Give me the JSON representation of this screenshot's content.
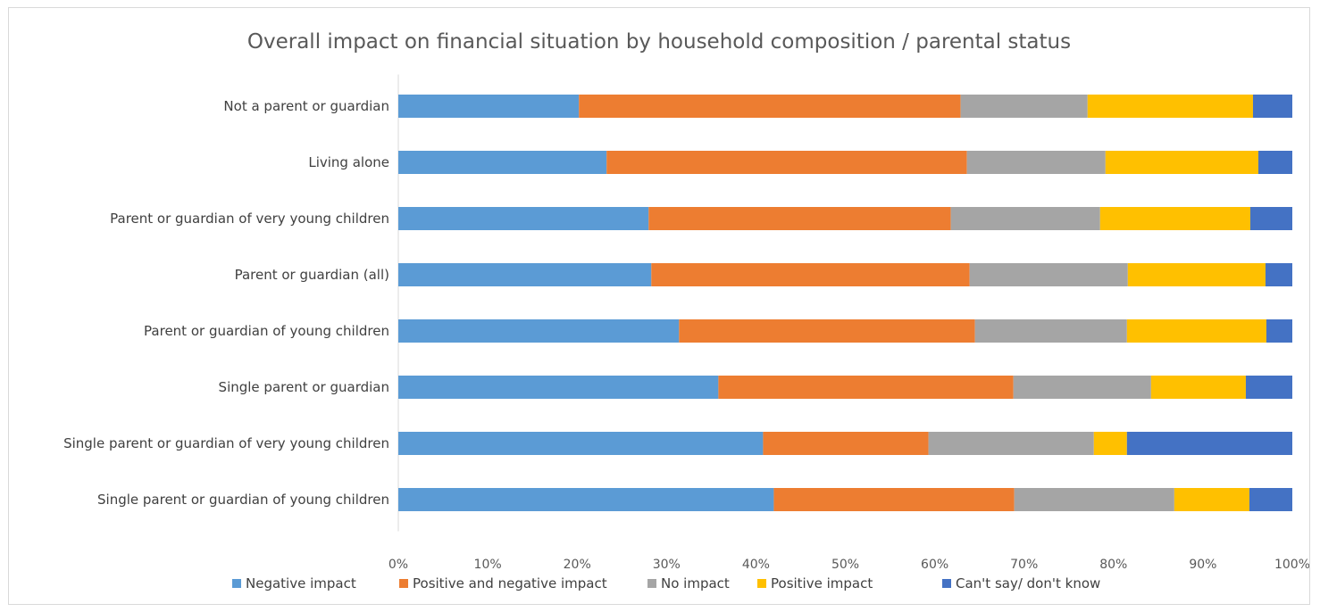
{
  "chart_data": {
    "type": "bar",
    "orientation": "horizontal",
    "stacked": "percent",
    "title": "Overall impact on financial situation by household composition / parental status",
    "categories": [
      "Not a parent or guardian",
      "Living alone",
      "Parent or guardian of very young children",
      "Parent or guardian (all)",
      "Parent or guardian of young children",
      "Single parent or guardian",
      "Single parent or guardian of very young children",
      "Single parent or guardian of young children"
    ],
    "series": [
      {
        "name": "Negative impact",
        "color": "#5b9bd5",
        "values": [
          20.2,
          23.3,
          28.0,
          28.3,
          31.4,
          35.8,
          40.8,
          42.0
        ]
      },
      {
        "name": "Positive and negative impact",
        "color": "#ed7d31",
        "values": [
          42.7,
          40.3,
          33.8,
          35.6,
          33.1,
          33.0,
          18.5,
          26.9
        ]
      },
      {
        "name": "No impact",
        "color": "#a5a5a5",
        "values": [
          14.2,
          15.5,
          16.7,
          17.7,
          17.0,
          15.4,
          18.5,
          17.9
        ]
      },
      {
        "name": "Positive impact",
        "color": "#ffc000",
        "values": [
          18.5,
          17.1,
          16.8,
          15.4,
          15.6,
          10.6,
          3.7,
          8.4
        ]
      },
      {
        "name": "Can't say/ don't know",
        "color": "#4472c4",
        "values": [
          4.4,
          3.8,
          4.7,
          3.0,
          2.9,
          5.2,
          18.5,
          4.8
        ]
      }
    ],
    "xlim": [
      0,
      100
    ],
    "xticks": [
      "0%",
      "10%",
      "20%",
      "30%",
      "40%",
      "50%",
      "60%",
      "70%",
      "80%",
      "90%",
      "100%"
    ],
    "grid": false,
    "legend_position": "bottom"
  }
}
